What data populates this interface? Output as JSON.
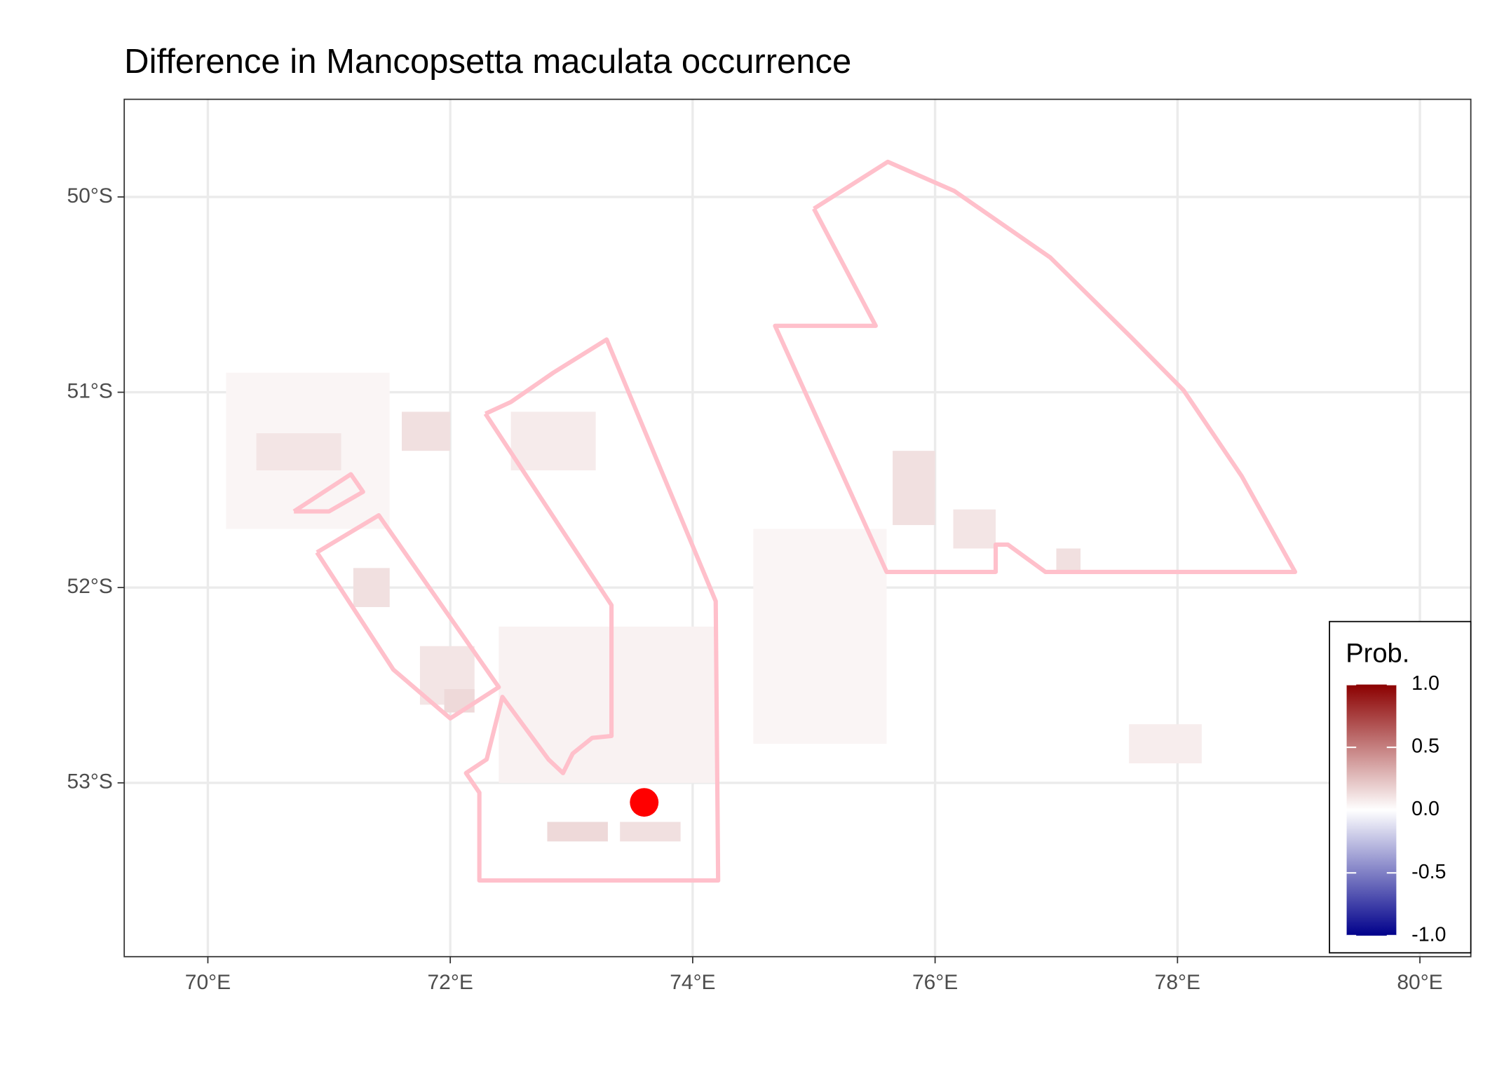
{
  "chart_data": {
    "type": "map",
    "title": "Difference in  Mancopsetta maculata occurrence",
    "xlim": [
      69.31,
      80.42
    ],
    "ylim": [
      -53.89,
      -49.5
    ],
    "xticks": [
      {
        "value": 70,
        "label": "70°E"
      },
      {
        "value": 72,
        "label": "72°E"
      },
      {
        "value": 74,
        "label": "74°E"
      },
      {
        "value": 76,
        "label": "76°E"
      },
      {
        "value": 78,
        "label": "78°E"
      },
      {
        "value": 80,
        "label": "80°E"
      }
    ],
    "yticks": [
      {
        "value": -50,
        "label": "50°S"
      },
      {
        "value": -51,
        "label": "51°S"
      },
      {
        "value": -52,
        "label": "52°S"
      },
      {
        "value": -53,
        "label": "53°S"
      }
    ],
    "grid": true,
    "cells": [
      [
        70.15,
        71.5,
        -50.9,
        -51.7,
        0.04
      ],
      [
        74.5,
        75.6,
        -51.7,
        -52.8,
        0.04
      ],
      [
        72.4,
        74.2,
        -52.2,
        -53.0,
        0.05
      ],
      [
        70.4,
        71.1,
        -51.21,
        -51.4,
        0.1
      ],
      [
        71.6,
        72.0,
        -51.1,
        -51.3,
        0.12
      ],
      [
        71.2,
        71.5,
        -51.9,
        -52.1,
        0.12
      ],
      [
        72.5,
        73.2,
        -51.1,
        -51.4,
        0.08
      ],
      [
        71.75,
        72.2,
        -52.3,
        -52.6,
        0.1
      ],
      [
        71.95,
        72.2,
        -52.52,
        -52.64,
        0.15
      ],
      [
        72.8,
        73.3,
        -53.2,
        -53.3,
        0.15
      ],
      [
        73.4,
        73.9,
        -53.2,
        -53.3,
        0.12
      ],
      [
        75.65,
        76.0,
        -51.3,
        -51.68,
        0.12
      ],
      [
        76.15,
        76.5,
        -51.6,
        -51.8,
        0.1
      ],
      [
        77.0,
        77.2,
        -51.8,
        -51.93,
        0.12
      ],
      [
        77.6,
        78.2,
        -52.7,
        -52.9,
        0.07
      ]
    ],
    "polygons": [
      [
        [
          75.0,
          -50.06
        ],
        [
          75.61,
          -49.82
        ],
        [
          76.16,
          -49.97
        ],
        [
          76.95,
          -50.31
        ],
        [
          77.62,
          -50.72
        ],
        [
          78.05,
          -50.99
        ],
        [
          78.53,
          -51.43
        ],
        [
          78.97,
          -51.92
        ],
        [
          76.91,
          -51.92
        ],
        [
          76.6,
          -51.78
        ],
        [
          76.5,
          -51.78
        ],
        [
          76.5,
          -51.92
        ],
        [
          75.6,
          -51.92
        ],
        [
          74.68,
          -50.66
        ],
        [
          75.51,
          -50.66
        ],
        [
          75.0,
          -50.06
        ]
      ],
      [
        [
          72.29,
          -51.11
        ],
        [
          72.5,
          -51.05
        ],
        [
          72.85,
          -50.9
        ],
        [
          73.29,
          -50.73
        ],
        [
          74.19,
          -52.07
        ],
        [
          74.21,
          -53.5
        ],
        [
          72.24,
          -53.5
        ],
        [
          72.24,
          -53.05
        ],
        [
          72.13,
          -52.95
        ],
        [
          72.3,
          -52.88
        ],
        [
          72.43,
          -52.56
        ],
        [
          72.81,
          -52.88
        ],
        [
          72.93,
          -52.95
        ],
        [
          73.01,
          -52.85
        ],
        [
          73.17,
          -52.77
        ],
        [
          73.33,
          -52.76
        ],
        [
          73.33,
          -52.09
        ],
        [
          72.29,
          -51.11
        ]
      ],
      [
        [
          70.9,
          -51.82
        ],
        [
          71.41,
          -51.63
        ],
        [
          72.4,
          -52.51
        ],
        [
          72.0,
          -52.67
        ],
        [
          71.53,
          -52.42
        ],
        [
          70.9,
          -51.82
        ]
      ],
      [
        [
          70.71,
          -51.61
        ],
        [
          71.18,
          -51.42
        ],
        [
          71.28,
          -51.51
        ],
        [
          71.0,
          -51.61
        ],
        [
          70.71,
          -51.61
        ]
      ]
    ],
    "polygon_color": "#ffc0cb",
    "point": {
      "x": 73.6,
      "y": -53.1,
      "color": "#ff0000"
    },
    "legend": {
      "title": "Prob.",
      "low": "#00008b",
      "mid": "#ffffff",
      "high": "#8b0000",
      "limits": [
        -1,
        1
      ],
      "ticks": [
        {
          "value": 1,
          "label": "1.0"
        },
        0.5,
        {
          "value": 0,
          "label": "0.0"
        },
        -0.5,
        {
          "value": -1,
          "label": "-1.0"
        }
      ]
    }
  }
}
